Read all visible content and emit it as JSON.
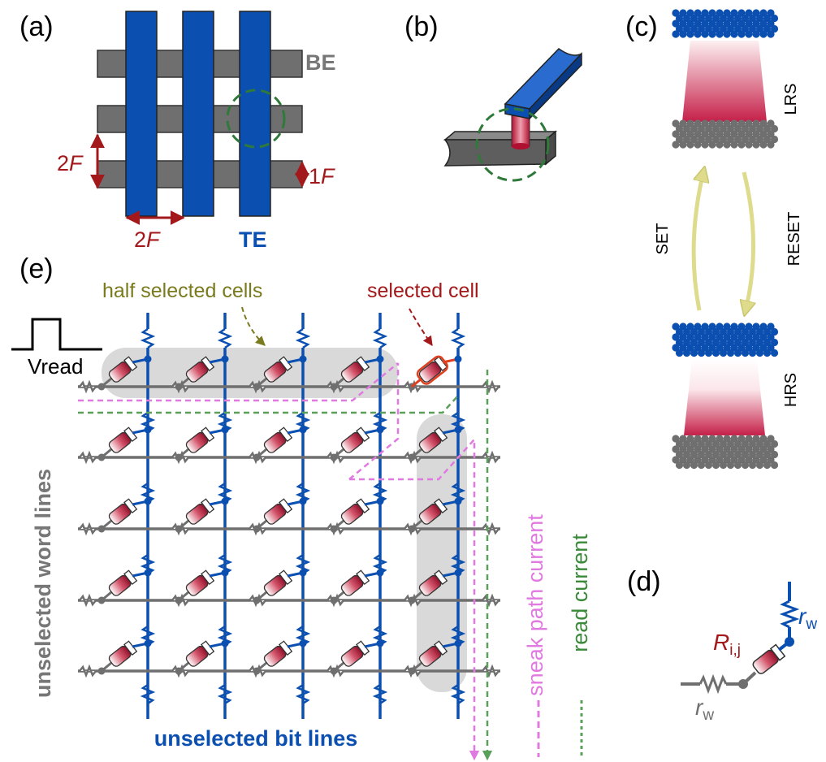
{
  "colors": {
    "blue": "#0b4fb0",
    "gray": "#6f6f6f",
    "dark_red": "#a3181a",
    "olive": "#7a7a1e",
    "magenta": "#e07ae0",
    "green": "#5aa05a",
    "highlight": "#d9d9d9",
    "arrow_yellow": "#dedc8c"
  },
  "panels": {
    "a": {
      "label": "(a)",
      "be": "BE",
      "te": "TE",
      "dim_2f_vertical": "2",
      "dim_1f": "1",
      "dim_2f_horizontal": "2",
      "f_symbol": "F"
    },
    "b": {
      "label": "(b)"
    },
    "c": {
      "label": "(c)",
      "lrs": "LRS",
      "hrs": "HRS",
      "set": "SET",
      "reset": "RESET"
    },
    "d": {
      "label": "(d)",
      "r_symbol": "R",
      "r_sub": "i,j",
      "rw_symbol": "r",
      "rw_sub": "w"
    },
    "e": {
      "label": "(e)",
      "half_selected": "half selected cells",
      "selected": "selected cell",
      "vread": "Vread",
      "word_lines": "unselected word lines",
      "bit_lines": "unselected bit lines",
      "sneak": "sneak path current",
      "read": "read current"
    }
  }
}
